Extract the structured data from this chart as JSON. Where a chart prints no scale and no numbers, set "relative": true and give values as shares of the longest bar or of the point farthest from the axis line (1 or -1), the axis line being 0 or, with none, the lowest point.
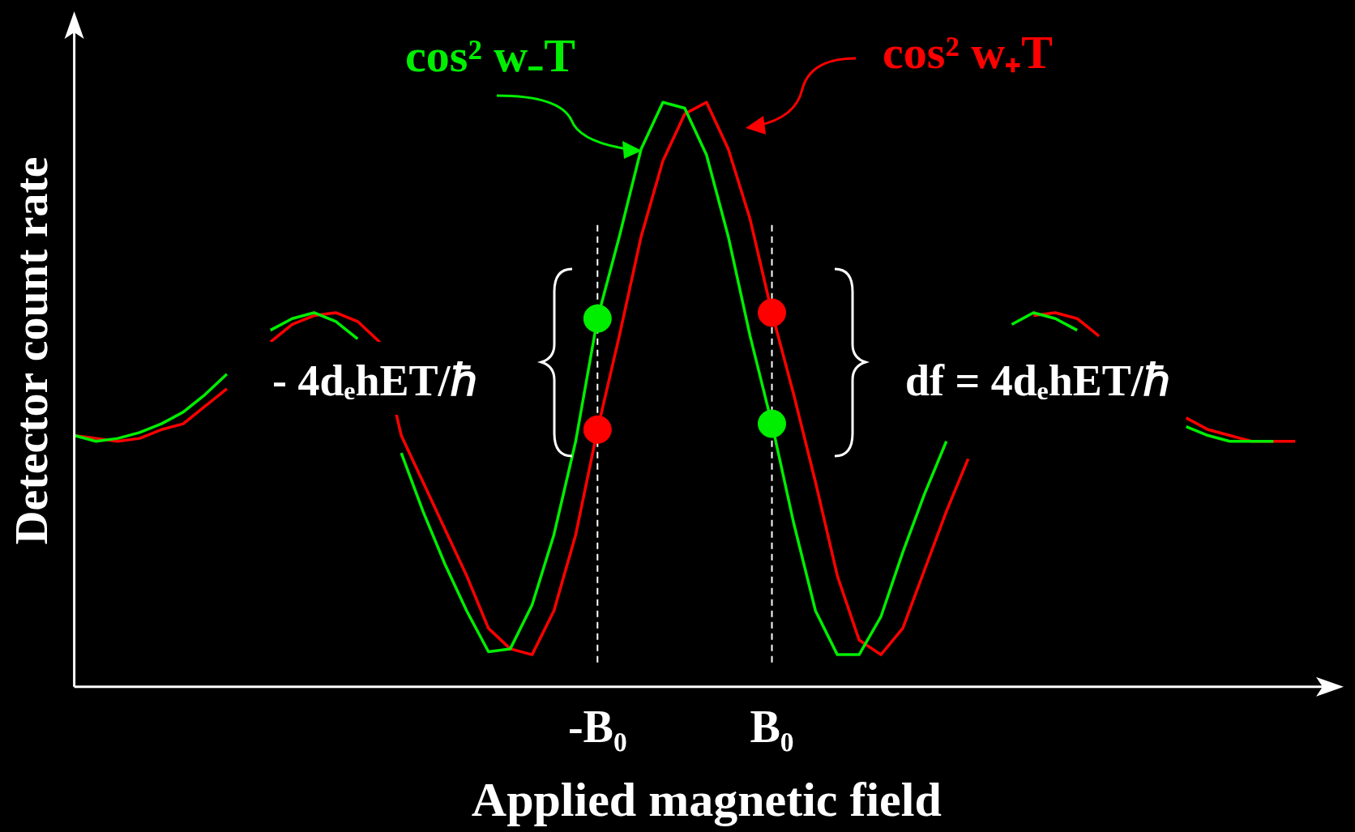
{
  "chart_data": {
    "type": "line",
    "relative": true,
    "xlabel": "Applied magnetic field",
    "ylabel": "Detector count rate",
    "categories": [
      null,
      null,
      null,
      null,
      null,
      null,
      null,
      null,
      null,
      null,
      null,
      null,
      null,
      null,
      null,
      null,
      null,
      null,
      null,
      null,
      null,
      null,
      null,
      null,
      "-B₀",
      null,
      null,
      null,
      null,
      null,
      null,
      null,
      "B₀",
      null,
      null,
      null,
      null,
      null,
      null,
      null,
      null,
      null,
      null,
      null,
      null,
      null,
      null,
      null,
      null,
      null,
      null,
      null,
      null,
      null,
      null,
      null,
      null,
      null,
      null
    ],
    "legend": false,
    "series": [
      {
        "name": "cos² w₋T",
        "color": "#00ee00",
        "values": [
          0.43,
          0.42,
          0.425,
          0.435,
          0.45,
          0.47,
          0.5,
          0.535,
          null,
          0.61,
          0.63,
          0.64,
          0.625,
          0.595,
          null,
          0.4,
          0.3,
          0.21,
          0.13,
          0.06,
          0.065,
          0.14,
          0.26,
          0.42,
          0.63,
          0.77,
          0.92,
          1,
          0.99,
          0.91,
          0.77,
          0.6,
          0.45,
          0.28,
          0.13,
          0.055,
          0.055,
          0.12,
          0.23,
          0.33,
          0.42,
          null,
          null,
          0.62,
          0.64,
          0.63,
          0.61,
          null,
          null,
          null,
          null,
          0.445,
          0.43,
          0.42,
          0.42,
          0.42,
          null,
          null,
          null
        ]
      },
      {
        "name": "cos² w₊T",
        "color": "#ff0000",
        "values": [
          0.43,
          0.425,
          0.42,
          0.425,
          0.44,
          0.45,
          0.48,
          0.51,
          null,
          0.59,
          0.62,
          0.635,
          0.64,
          0.625,
          0.59,
          0.43,
          0.35,
          0.27,
          0.19,
          0.1,
          0.065,
          0.055,
          0.13,
          0.26,
          0.44,
          0.6,
          0.77,
          0.9,
          0.98,
          1,
          0.92,
          0.8,
          0.64,
          0.5,
          0.35,
          0.19,
          0.08,
          0.055,
          0.1,
          0.2,
          0.3,
          0.39,
          null,
          null,
          0.635,
          0.64,
          0.63,
          0.6,
          null,
          null,
          null,
          0.46,
          0.44,
          0.43,
          0.42,
          0.42,
          0.42,
          null,
          null
        ]
      },
      {
        "type": "scatter",
        "marker": "circle",
        "color": "#00ee00",
        "x": [
          "-B₀",
          "B₀"
        ],
        "values": [
          0.63,
          0.45
        ]
      },
      {
        "type": "scatter",
        "marker": "circle",
        "color": "#ff0000",
        "x": [
          "-B₀",
          "B₀"
        ],
        "values": [
          0.44,
          0.64
        ]
      }
    ],
    "ref_lines": [
      {
        "axis": "x",
        "value": "-B₀",
        "color": "#ffffff",
        "line_style": "dashed"
      },
      {
        "axis": "x",
        "value": "B₀",
        "color": "#ffffff",
        "line_style": "dashed"
      }
    ],
    "annotations": [
      "- 4dₑhET/ℏ",
      "df = 4dₑhET/ℏ"
    ]
  }
}
